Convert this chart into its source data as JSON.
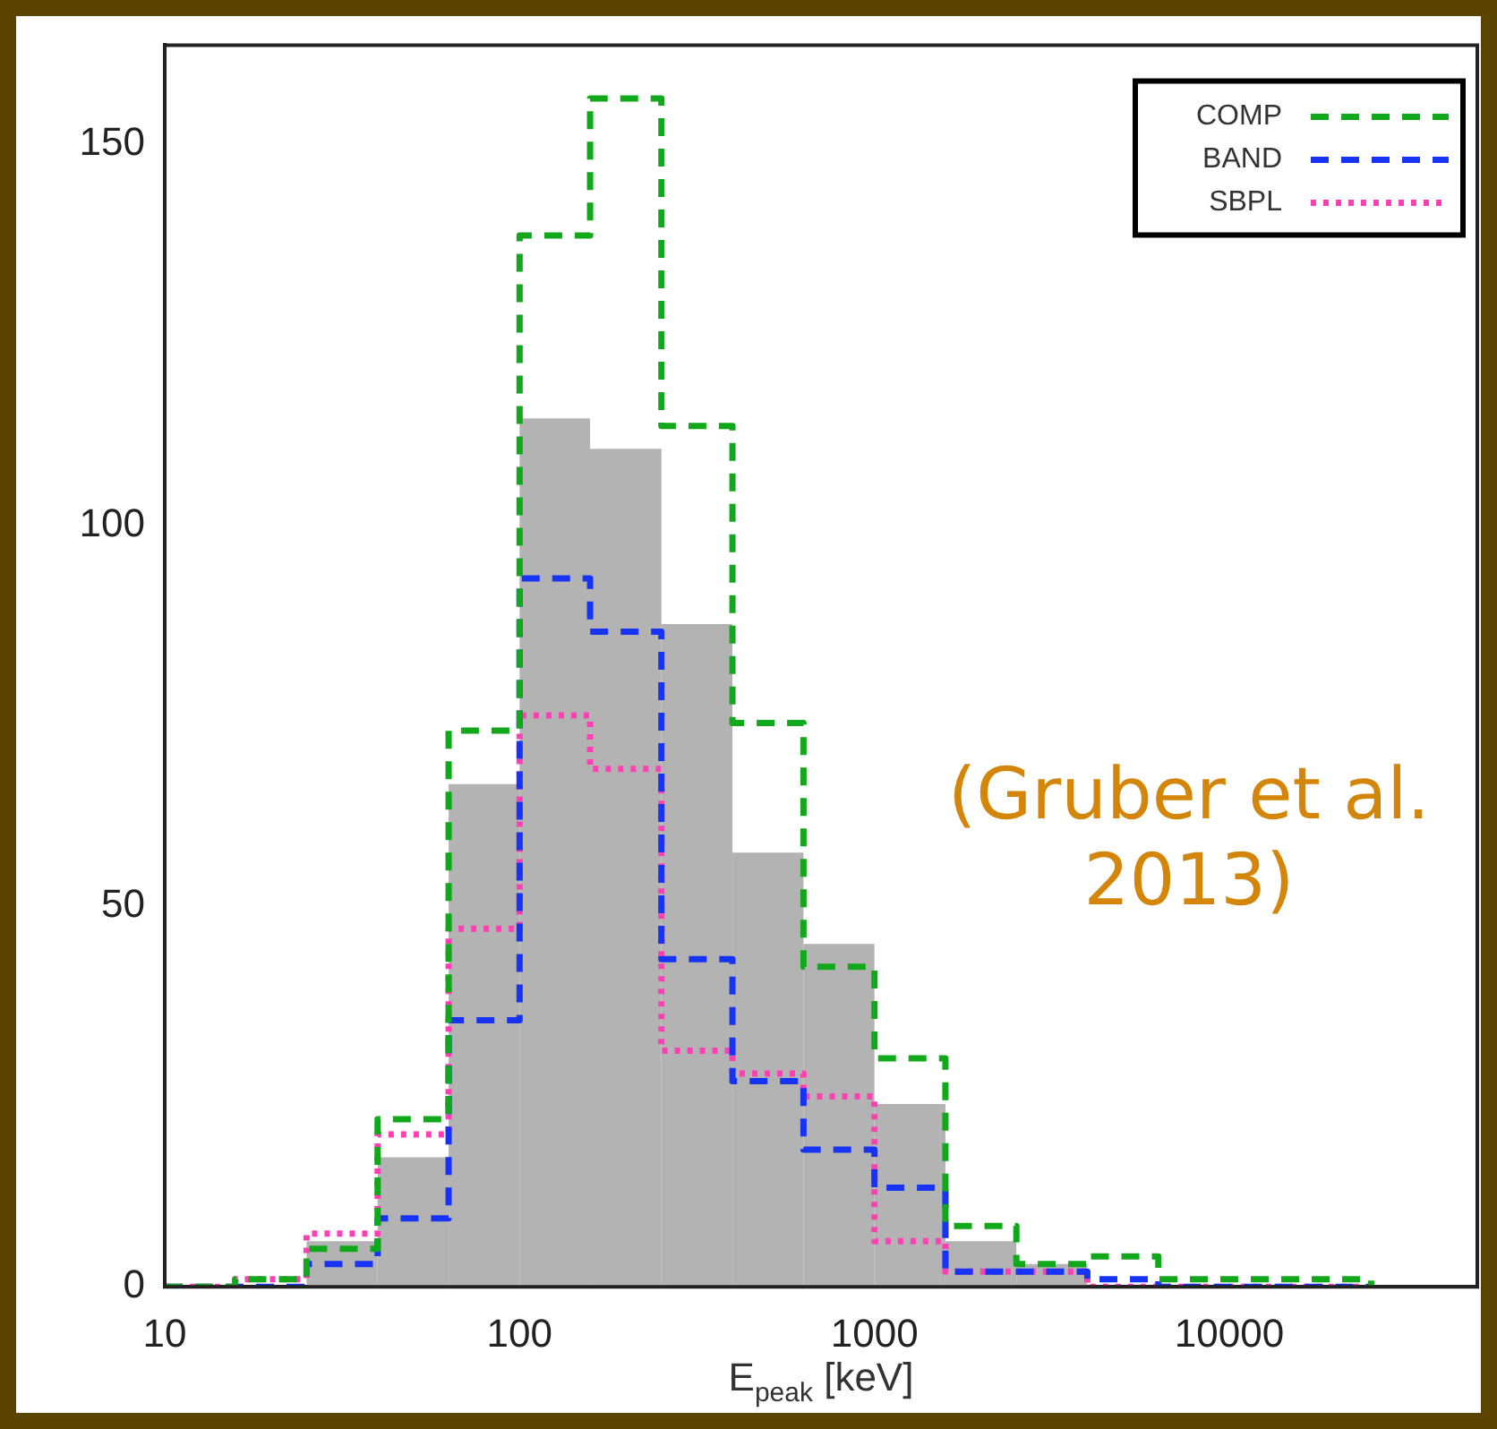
{
  "chart_data": {
    "type": "histogram",
    "xlabel": "E$_{peak}$ [keV]",
    "log": "x",
    "bins": [
      25.1,
      39.8,
      63.1,
      100,
      158,
      251,
      398,
      631,
      1000,
      1585,
      2512,
      3981
    ],
    "series": [
      {
        "color": "#b3b3b3",
        "values": [
          6,
          17,
          66,
          114,
          110,
          87,
          57,
          45,
          24,
          6,
          3
        ]
      },
      {
        "type": "step",
        "name": "COMP",
        "color": "#11a81b",
        "line_style": "dashed",
        "x": [
          10,
          15.8,
          25.1,
          39.8,
          63.1,
          100,
          158,
          251,
          398,
          631,
          1000,
          1585,
          2512,
          3981,
          6310,
          10000,
          15849,
          25119
        ],
        "values": [
          0,
          1,
          5,
          22,
          73,
          138,
          156,
          113,
          74,
          42,
          30,
          8,
          3,
          4,
          1,
          1,
          1,
          0
        ]
      },
      {
        "type": "step",
        "name": "BAND",
        "color": "#1733f5",
        "line_style": "dashed",
        "x": [
          10,
          15.8,
          25.1,
          39.8,
          63.1,
          100,
          158,
          251,
          398,
          631,
          1000,
          1585,
          2512,
          3981,
          6310,
          10000,
          15849,
          25119
        ],
        "values": [
          0,
          0,
          3,
          9,
          35,
          93,
          86,
          43,
          27,
          18,
          13,
          2,
          2,
          1,
          0,
          0,
          0,
          0
        ]
      },
      {
        "type": "step",
        "name": "SBPL",
        "color": "#ff3fb4",
        "line_style": "dotted",
        "x": [
          10,
          15.8,
          25.1,
          39.8,
          63.1,
          100,
          158,
          251,
          398,
          631,
          1000,
          1585,
          2512,
          3981,
          6310,
          10000,
          15849,
          25119
        ],
        "values": [
          0,
          1,
          7,
          20,
          47,
          75,
          68,
          31,
          28,
          25,
          6,
          2,
          2,
          0,
          0,
          0,
          0,
          0
        ]
      }
    ],
    "xlim": [
      10,
      50000
    ],
    "xticks": [
      10,
      100,
      1000,
      10000
    ],
    "ylim": [
      0,
      163
    ],
    "yticks": [
      0,
      50,
      100,
      150
    ],
    "legend": "top right",
    "grid": false,
    "annotations": [
      "(Gruber et al. 2013)"
    ]
  }
}
